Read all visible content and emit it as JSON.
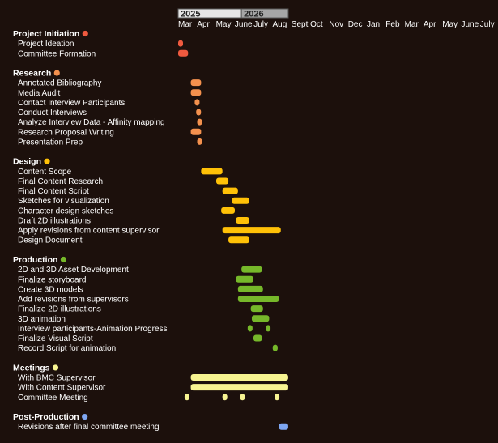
{
  "chart_data": {
    "type": "gantt",
    "timeline": {
      "years": [
        {
          "label": "2025",
          "start": "2025-03-01",
          "end": "2026-01-01",
          "fill": "#e6e6e6"
        },
        {
          "label": "2026",
          "start": "2026-01-01",
          "end": "2026-08-15",
          "fill": "#a6a6a6"
        }
      ],
      "months": [
        "Mar",
        "Apr",
        "May",
        "June",
        "July",
        "Aug",
        "Sept",
        "Oct",
        "Nov",
        "Dec",
        "Jan",
        "Feb",
        "Mar",
        "Apr",
        "May",
        "June",
        "July"
      ]
    },
    "sections": [
      {
        "name": "Project Initiation",
        "color": "#f05a3f",
        "tasks": [
          {
            "label": "Project Ideation",
            "bars": [
              [
                "2025-03-01",
                "2025-03-20"
              ]
            ]
          },
          {
            "label": "Committee Formation",
            "bars": [
              [
                "2025-03-01",
                "2025-04-18"
              ]
            ]
          }
        ]
      },
      {
        "name": "Research",
        "color": "#f4914e",
        "tasks": [
          {
            "label": "Annotated Bibliography",
            "bars": [
              [
                "2025-05-01",
                "2025-06-20"
              ]
            ]
          },
          {
            "label": "Media Audit",
            "bars": [
              [
                "2025-05-01",
                "2025-06-20"
              ]
            ]
          },
          {
            "label": "Contact Interview Participants",
            "bars": [
              [
                "2025-05-20",
                "2025-06-05"
              ]
            ]
          },
          {
            "label": "Conduct Interviews",
            "bars": [
              [
                "2025-05-27",
                "2025-06-12"
              ]
            ]
          },
          {
            "label": "Analyze Interview Data - Affinity mapping",
            "bars": [
              [
                "2025-06-01",
                "2025-06-17"
              ]
            ]
          },
          {
            "label": "Research Proposal Writing",
            "bars": [
              [
                "2025-05-01",
                "2025-06-20"
              ]
            ]
          },
          {
            "label": "Presentation Prep",
            "bars": [
              [
                "2025-06-01",
                "2025-06-22"
              ]
            ]
          }
        ]
      },
      {
        "name": "Design",
        "color": "#ffc107",
        "tasks": [
          {
            "label": "Content Scope",
            "bars": [
              [
                "2025-06-20",
                "2025-10-01"
              ]
            ]
          },
          {
            "label": "Final Content Research",
            "bars": [
              [
                "2025-09-01",
                "2025-10-30"
              ]
            ]
          },
          {
            "label": "Final Content Script",
            "bars": [
              [
                "2025-10-01",
                "2025-12-15"
              ]
            ]
          },
          {
            "label": "Sketches for visualization",
            "bars": [
              [
                "2025-11-15",
                "2026-02-08"
              ]
            ]
          },
          {
            "label": "Character design sketches",
            "bars": [
              [
                "2025-09-25",
                "2025-11-30"
              ]
            ]
          },
          {
            "label": "Draft 2D illustrations",
            "bars": [
              [
                "2025-12-05",
                "2026-02-08"
              ]
            ]
          },
          {
            "label": "Apply revisions from content supervisor",
            "bars": [
              [
                "2025-10-01",
                "2026-07-10"
              ]
            ]
          },
          {
            "label": "Design Document",
            "bars": [
              [
                "2025-10-30",
                "2026-02-08"
              ]
            ]
          }
        ]
      },
      {
        "name": "Production",
        "color": "#76b82a",
        "tasks": [
          {
            "label": "2D and 3D Asset Development",
            "bars": [
              [
                "2026-01-01",
                "2026-04-10"
              ]
            ]
          },
          {
            "label": "Finalize storyboard",
            "bars": [
              [
                "2025-12-05",
                "2026-02-28"
              ]
            ]
          },
          {
            "label": "Create 3D models",
            "bars": [
              [
                "2025-12-15",
                "2026-04-15"
              ]
            ]
          },
          {
            "label": "Add revisions from supervisors",
            "bars": [
              [
                "2025-12-15",
                "2026-07-01"
              ]
            ]
          },
          {
            "label": "Finalize 2D illustrations",
            "bars": [
              [
                "2026-02-15",
                "2026-04-15"
              ]
            ]
          },
          {
            "label": "3D animation",
            "bars": [
              [
                "2026-02-20",
                "2026-05-15"
              ]
            ]
          },
          {
            "label": "Interview participants-Animation Progress",
            "bars": [
              [
                "2026-01-31",
                "2026-02-15"
              ],
              [
                "2026-04-28",
                "2026-05-15"
              ]
            ]
          },
          {
            "label": "Finalize Visual Script",
            "bars": [
              [
                "2026-02-28",
                "2026-04-10"
              ]
            ]
          },
          {
            "label": "Record Script for animation",
            "bars": [
              [
                "2026-06-01",
                "2026-06-25"
              ]
            ]
          }
        ]
      },
      {
        "name": "Meetings",
        "color": "#f7f491",
        "tasks": [
          {
            "label": "With BMC Supervisor",
            "bars": [
              [
                "2025-05-01",
                "2026-08-15"
              ]
            ]
          },
          {
            "label": "With Content Supervisor",
            "bars": [
              [
                "2025-05-01",
                "2026-08-15"
              ]
            ]
          },
          {
            "label": "Committee Meeting",
            "bars": [
              [
                "2025-04-01",
                "2025-04-20"
              ],
              [
                "2025-10-01",
                "2025-10-12"
              ],
              [
                "2025-12-25",
                "2026-01-12"
              ],
              [
                "2026-06-10",
                "2026-06-28"
              ]
            ]
          }
        ]
      },
      {
        "name": "Post-Production",
        "color": "#7ea6f2",
        "tasks": [
          {
            "label": "Revisions after final committee meeting",
            "bars": [
              [
                "2026-07-01",
                "2026-08-15"
              ]
            ]
          }
        ]
      }
    ]
  }
}
